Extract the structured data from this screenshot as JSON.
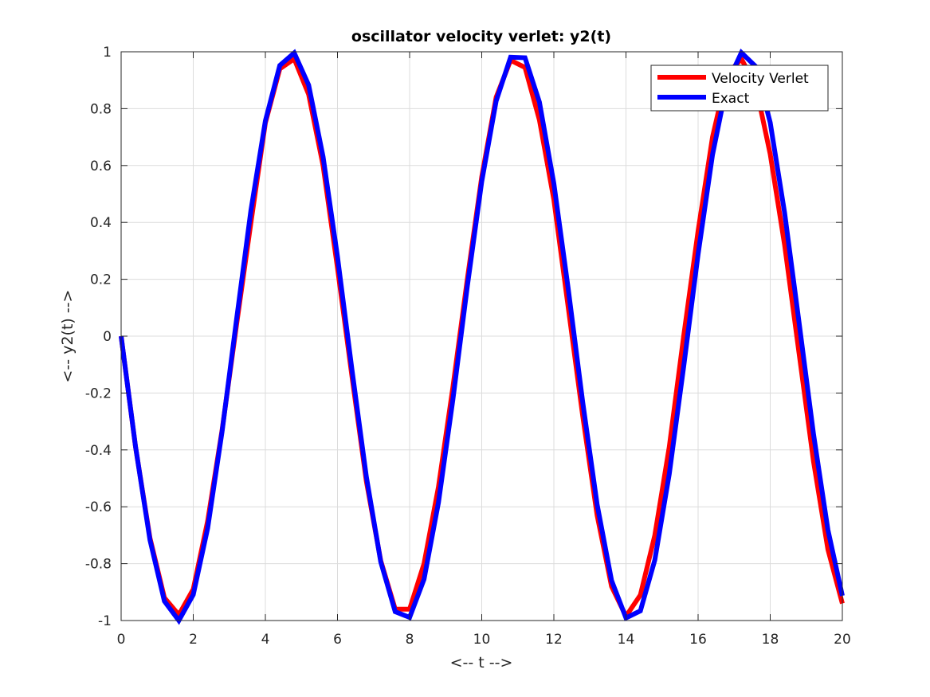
{
  "chart_data": {
    "type": "line",
    "title": "oscillator velocity verlet: y2(t)",
    "xlabel": "<-- t -->",
    "ylabel": "<-- y2(t) -->",
    "xlim": [
      0,
      20
    ],
    "ylim": [
      -1,
      1
    ],
    "xticks": [
      "0",
      "2",
      "4",
      "6",
      "8",
      "10",
      "12",
      "14",
      "16",
      "18",
      "20"
    ],
    "yticks": [
      "-1",
      "-0.8",
      "-0.6",
      "-0.4",
      "-0.2",
      "0",
      "0.2",
      "0.4",
      "0.6",
      "0.8",
      "1"
    ],
    "grid": true,
    "legend_position": "top-right",
    "x": [
      0,
      0.4,
      0.8,
      1.2,
      1.6,
      2.0,
      2.4,
      2.8,
      3.2,
      3.6,
      4.0,
      4.4,
      4.8,
      5.2,
      5.6,
      6.0,
      6.4,
      6.8,
      7.2,
      7.6,
      8.0,
      8.4,
      8.8,
      9.2,
      9.6,
      10.0,
      10.4,
      10.8,
      11.2,
      11.6,
      12.0,
      12.4,
      12.8,
      13.2,
      13.6,
      14.0,
      14.4,
      14.8,
      15.2,
      15.6,
      16.0,
      16.4,
      16.8,
      17.2,
      17.6,
      18.0,
      18.4,
      18.8,
      19.2,
      19.6,
      20.0
    ],
    "series": [
      {
        "name": "Velocity Verlet",
        "color": "#ff0000",
        "values": [
          0.0,
          -0.39,
          -0.71,
          -0.92,
          -0.98,
          -0.89,
          -0.65,
          -0.33,
          0.04,
          0.4,
          0.75,
          0.94,
          0.975,
          0.85,
          0.6,
          0.24,
          -0.14,
          -0.51,
          -0.79,
          -0.96,
          -0.96,
          -0.8,
          -0.53,
          -0.18,
          0.2,
          0.56,
          0.84,
          0.97,
          0.945,
          0.76,
          0.48,
          0.1,
          -0.28,
          -0.63,
          -0.88,
          -0.985,
          -0.91,
          -0.7,
          -0.39,
          0.0,
          0.37,
          0.7,
          0.92,
          0.975,
          0.88,
          0.64,
          0.32,
          -0.06,
          -0.44,
          -0.75,
          -0.94
        ]
      },
      {
        "name": "Exact",
        "color": "#0000ff",
        "values": [
          0.0,
          -0.389,
          -0.717,
          -0.932,
          -1.0,
          -0.909,
          -0.675,
          -0.335,
          0.058,
          0.443,
          0.757,
          0.952,
          0.996,
          0.883,
          0.631,
          0.279,
          -0.117,
          -0.494,
          -0.794,
          -0.969,
          -0.989,
          -0.855,
          -0.585,
          -0.223,
          0.175,
          0.544,
          0.827,
          0.981,
          0.979,
          0.823,
          0.537,
          0.165,
          -0.232,
          -0.592,
          -0.859,
          -0.991,
          -0.966,
          -0.787,
          -0.485,
          -0.107,
          0.288,
          0.638,
          0.887,
          0.997,
          0.948,
          0.751,
          0.433,
          0.048,
          -0.344,
          -0.681,
          -0.913
        ]
      }
    ]
  }
}
